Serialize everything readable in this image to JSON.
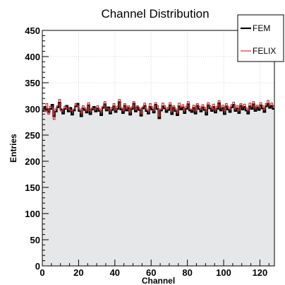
{
  "chart_data": {
    "type": "line",
    "title": "Channel Distribution",
    "xlabel": "Channel",
    "ylabel": "Entries",
    "xlim": [
      0,
      128
    ],
    "ylim": [
      0,
      450
    ],
    "x_ticks": [
      0,
      20,
      40,
      60,
      80,
      100,
      120
    ],
    "y_ticks": [
      0,
      50,
      100,
      150,
      200,
      250,
      300,
      350,
      400,
      450
    ],
    "grid": true,
    "legend_position": "top-right",
    "fill_color": "#e5e7e9",
    "series": [
      {
        "name": "FEM",
        "color": "#000000",
        "values": [
          296,
          304,
          298,
          294,
          300,
          308,
          286,
          295,
          303,
          312,
          299,
          291,
          300,
          306,
          295,
          302,
          289,
          297,
          305,
          310,
          296,
          286,
          301,
          298,
          293,
          307,
          290,
          299,
          304,
          295,
          301,
          296,
          288,
          302,
          309,
          297,
          303,
          291,
          298,
          305,
          294,
          300,
          313,
          299,
          292,
          306,
          297,
          302,
          289,
          300,
          310,
          295,
          303,
          298,
          287,
          301,
          306,
          296,
          291,
          304,
          299,
          293,
          308,
          300,
          282,
          297,
          305,
          301,
          294,
          298,
          307,
          290,
          302,
          296,
          288,
          305,
          299,
          303,
          292,
          300,
          309,
          297,
          294,
          302,
          291,
          306,
          300,
          295,
          303,
          298,
          289,
          307,
          301,
          296,
          304,
          293,
          300,
          311,
          297,
          302,
          290,
          305,
          299,
          294,
          303,
          308,
          296,
          301,
          292,
          306,
          299,
          304,
          297,
          291,
          305,
          300,
          309,
          296,
          303,
          298,
          307,
          301,
          294,
          305,
          310,
          302,
          306,
          300
        ]
      },
      {
        "name": "FELIX",
        "color": "#cc2020",
        "values": [
          300,
          295,
          310,
          290,
          305,
          302,
          280,
          300,
          306,
          318,
          296,
          300,
          305,
          300,
          303,
          298,
          296,
          300,
          310,
          306,
          300,
          292,
          306,
          302,
          297,
          312,
          296,
          302,
          300,
          299,
          306,
          300,
          294,
          305,
          314,
          300,
          300,
          296,
          303,
          310,
          298,
          305,
          318,
          302,
          297,
          310,
          300,
          306,
          294,
          304,
          314,
          299,
          306,
          302,
          291,
          304,
          311,
          300,
          296,
          310,
          304,
          297,
          312,
          306,
          286,
          300,
          311,
          306,
          299,
          303,
          312,
          295,
          306,
          300,
          293,
          311,
          303,
          308,
          297,
          305,
          314,
          300,
          299,
          307,
          296,
          310,
          305,
          299,
          308,
          303,
          295,
          312,
          306,
          300,
          309,
          298,
          305,
          316,
          302,
          307,
          296,
          310,
          304,
          299,
          308,
          313,
          300,
          306,
          297,
          310,
          305,
          309,
          302,
          297,
          311,
          305,
          314,
          302,
          307,
          303,
          312,
          306,
          299,
          310,
          316,
          307,
          311,
          306
        ]
      }
    ]
  }
}
